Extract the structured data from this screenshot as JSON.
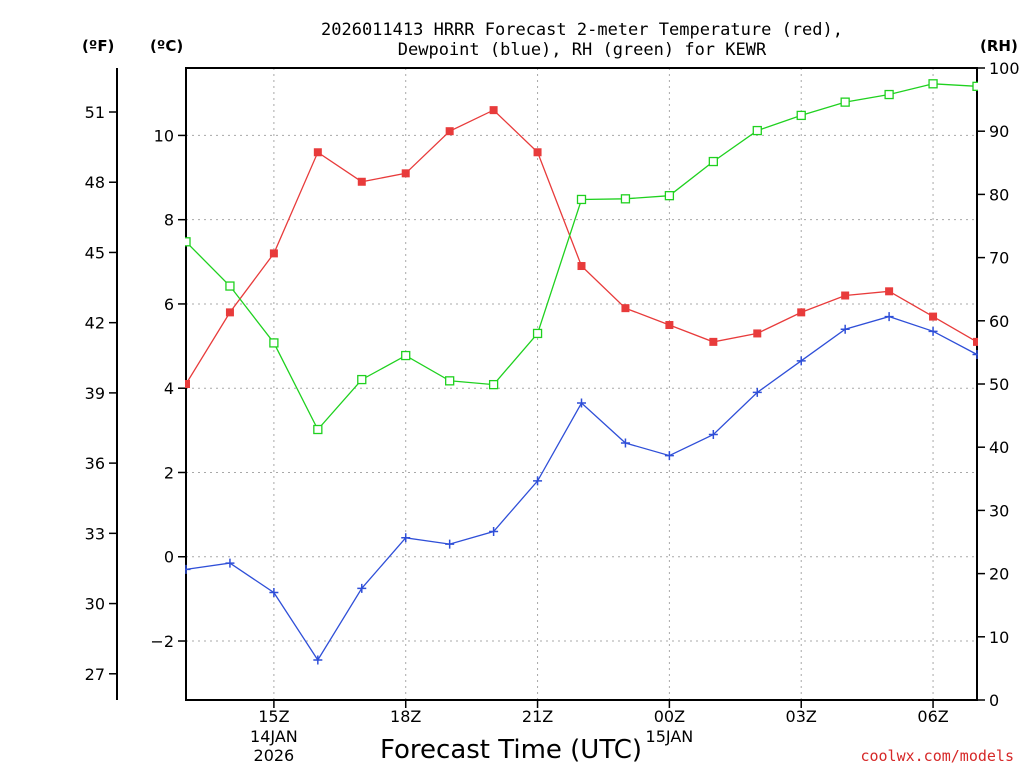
{
  "chart_data": {
    "type": "line",
    "title_line1": "2026011413 HRRR Forecast 2-meter Temperature (red),",
    "title_line2": "Dewpoint (blue), RH (green) for KEWR",
    "xlabel": "Forecast Time (UTC)",
    "credit": "coolwx.com/models",
    "units": {
      "fahrenheit": "(ºF)",
      "celsius": "(ºC)",
      "rh": "(RH)"
    },
    "x_hours": [
      13,
      14,
      15,
      16,
      17,
      18,
      19,
      20,
      21,
      22,
      23,
      24,
      25,
      26,
      27,
      28,
      29,
      30,
      31
    ],
    "xlim": [
      13,
      31
    ],
    "x_ticks": [
      {
        "hour": 15,
        "label": "15Z",
        "date1": "14JAN",
        "date2": "2026"
      },
      {
        "hour": 18,
        "label": "18Z"
      },
      {
        "hour": 21,
        "label": "21Z"
      },
      {
        "hour": 24,
        "label": "00Z",
        "date1": "15JAN"
      },
      {
        "hour": 27,
        "label": "03Z"
      },
      {
        "hour": 30,
        "label": "06Z"
      }
    ],
    "celsius_axis": {
      "ylim": [
        -3.4,
        11.6
      ],
      "ticks": [
        -2,
        0,
        2,
        4,
        6,
        8,
        10
      ],
      "tick_labels": [
        "−2",
        "0",
        "2",
        "4",
        "6",
        "8",
        "10"
      ]
    },
    "fahrenheit_axis": {
      "ylim": [
        25.88,
        52.88
      ],
      "ticks": [
        27,
        30,
        33,
        36,
        39,
        42,
        45,
        48,
        51
      ],
      "tick_labels": [
        "27",
        "30",
        "33",
        "36",
        "39",
        "42",
        "45",
        "48",
        "51"
      ]
    },
    "rh_axis": {
      "ylim": [
        0,
        100
      ],
      "ticks": [
        0,
        10,
        20,
        30,
        40,
        50,
        60,
        70,
        80,
        90,
        100
      ],
      "tick_labels": [
        "0",
        "10",
        "20",
        "30",
        "40",
        "50",
        "60",
        "70",
        "80",
        "90",
        "100"
      ]
    },
    "series": [
      {
        "name": "Temperature",
        "axis": "celsius",
        "color": "#e83b3b",
        "marker": "filled-square",
        "values": [
          4.1,
          5.8,
          7.2,
          9.6,
          8.9,
          9.1,
          10.1,
          10.6,
          9.6,
          6.9,
          5.9,
          5.5,
          5.1,
          5.3,
          5.8,
          6.2,
          6.3,
          5.7,
          5.1
        ]
      },
      {
        "name": "Dewpoint",
        "axis": "celsius",
        "color": "#2f4fd8",
        "marker": "plus",
        "values": [
          -0.3,
          -0.15,
          -0.85,
          -2.45,
          -0.75,
          0.45,
          0.3,
          0.6,
          1.8,
          3.65,
          2.7,
          2.4,
          2.9,
          3.9,
          4.65,
          5.4,
          5.7,
          5.35,
          4.8
        ]
      },
      {
        "name": "RH",
        "axis": "rh",
        "color": "#1fd11f",
        "marker": "open-square",
        "values": [
          72.5,
          65.5,
          56.5,
          42.8,
          50.7,
          54.5,
          50.5,
          49.9,
          58.0,
          79.2,
          79.3,
          79.8,
          85.2,
          90.1,
          92.5,
          94.6,
          95.8,
          97.5,
          97.1
        ]
      }
    ]
  }
}
